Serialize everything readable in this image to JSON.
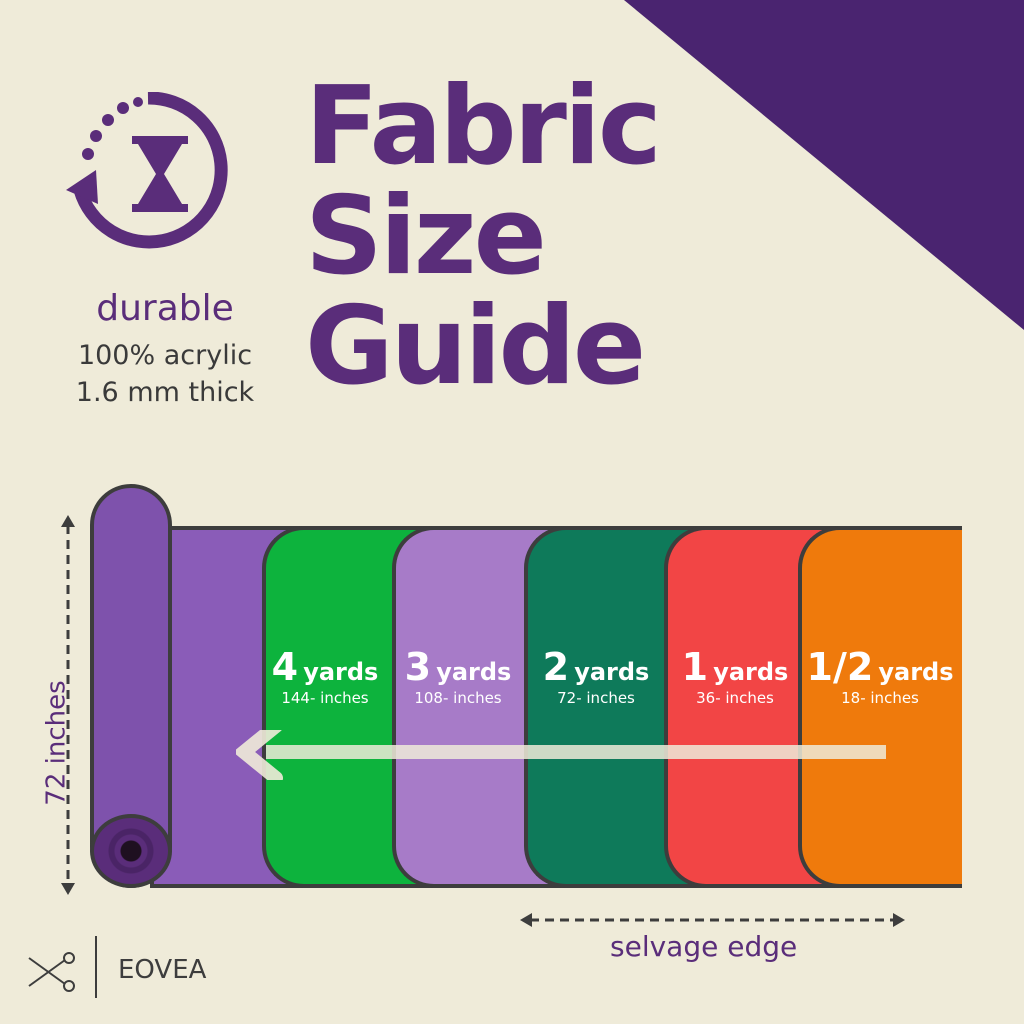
{
  "title_lines": [
    "Fabric",
    "Size",
    "Guide"
  ],
  "features": {
    "durable": "durable",
    "material": "100% acrylic",
    "thickness": "1.6 mm thick",
    "icon": "hourglass-cycle-icon"
  },
  "width_label": "72 inches",
  "panels": [
    {
      "big": "4",
      "unit": "yards",
      "inches": "144- inches",
      "color": "#0db33d"
    },
    {
      "big": "3",
      "unit": "yards",
      "inches": "108- inches",
      "color": "#a77bc8"
    },
    {
      "big": "2",
      "unit": "yards",
      "inches": "72- inches",
      "color": "#0e7a5a"
    },
    {
      "big": "1",
      "unit": "yards",
      "inches": "36- inches",
      "color": "#f24545"
    },
    {
      "big": "1/2",
      "unit": "yards",
      "inches": "18- inches",
      "color": "#ef7a0c"
    }
  ],
  "selvage": "selvage edge",
  "brand": {
    "name": "EOVEA",
    "icon": "scissors-icon"
  },
  "colors": {
    "accent": "#5a2d7a",
    "background": "#efebd9"
  }
}
